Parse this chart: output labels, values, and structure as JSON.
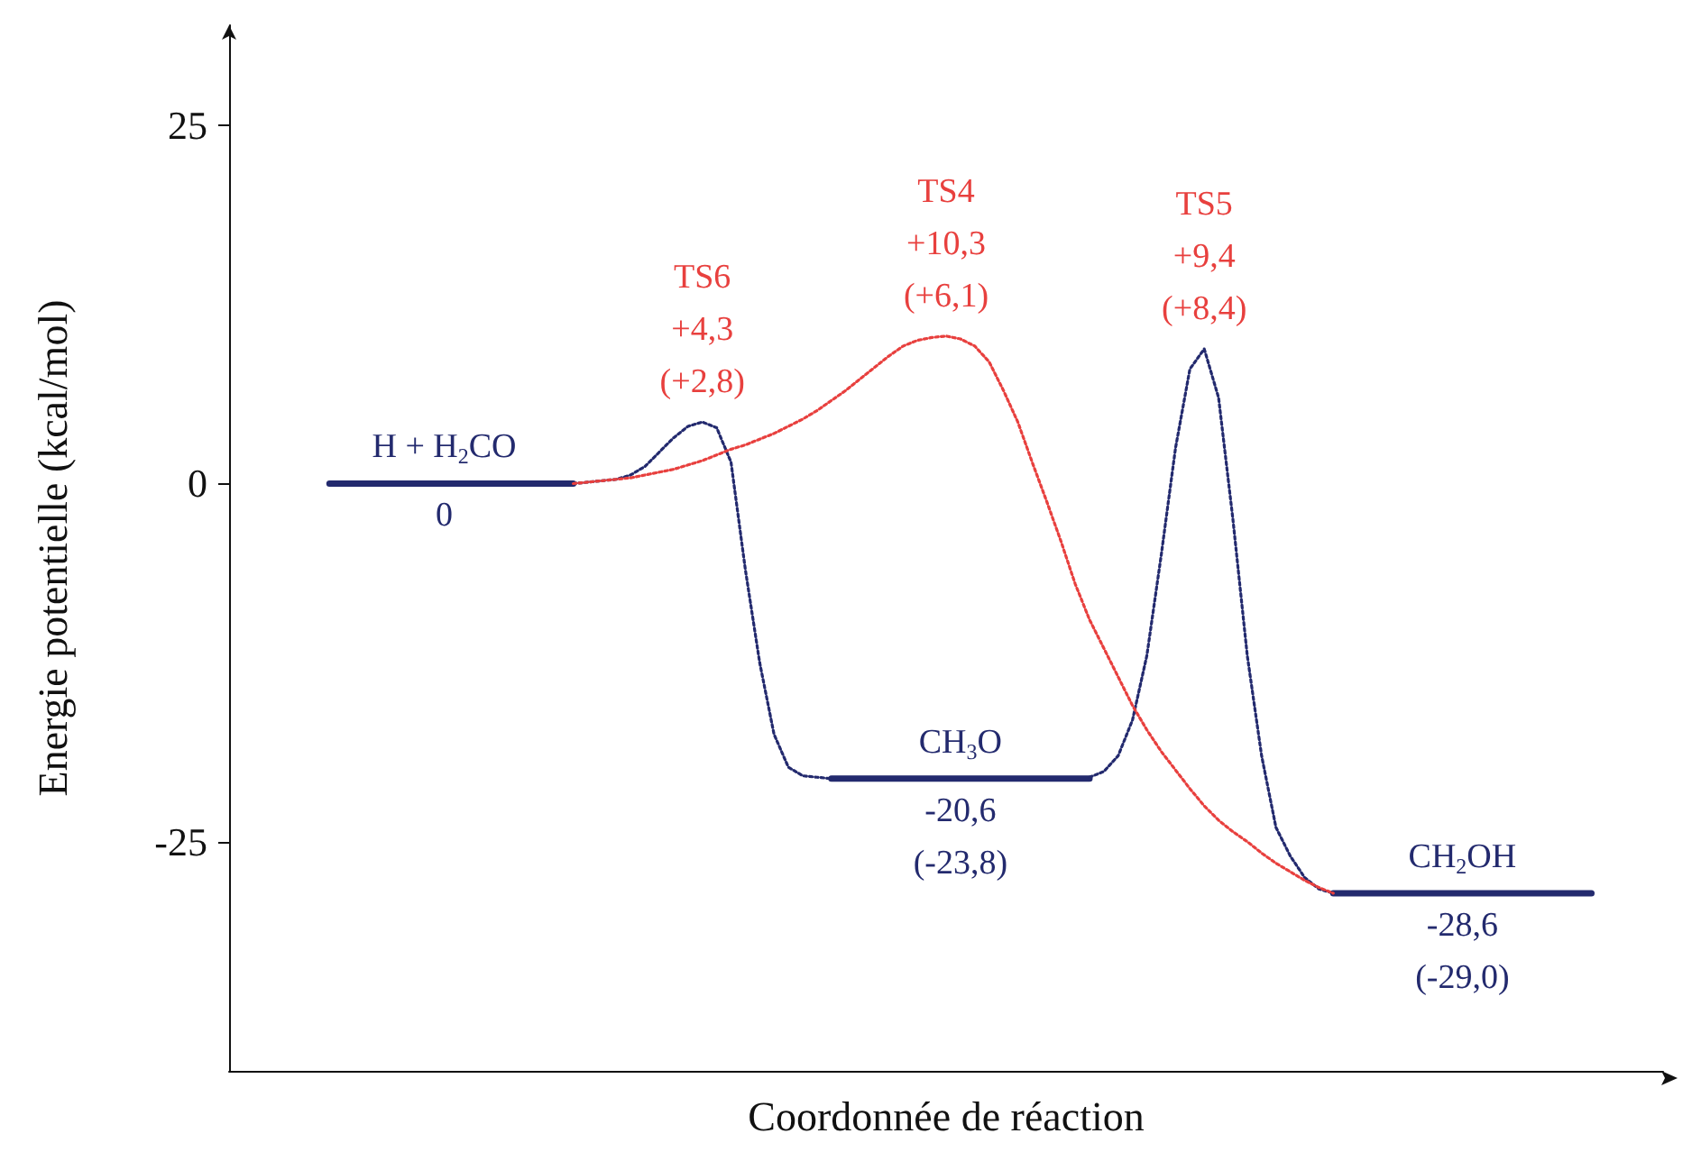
{
  "chart_data": {
    "type": "line",
    "xlabel": "Coordonnée de réaction",
    "ylabel": "Energie potentielle (kcal/mol)",
    "categories": [
      null,
      null,
      null,
      null,
      null,
      null,
      null,
      null,
      null,
      null,
      null,
      null,
      null,
      null,
      null,
      null,
      null,
      null,
      null,
      null,
      null,
      null,
      null,
      null,
      null,
      null,
      null,
      null,
      null,
      null,
      null,
      null,
      null,
      null,
      null,
      null,
      null,
      null,
      null,
      null,
      null,
      null,
      null,
      null,
      null,
      null,
      null,
      null,
      null,
      null,
      null,
      null,
      null,
      null,
      null,
      null,
      null,
      null,
      null,
      null,
      null,
      null,
      null,
      null,
      null,
      null,
      null,
      null,
      null,
      null,
      null,
      null,
      null,
      null,
      null,
      null,
      null,
      null,
      null,
      null,
      null,
      null,
      null,
      null,
      null,
      null,
      null,
      null,
      null,
      null,
      null,
      null,
      null,
      null,
      null,
      null,
      null,
      null,
      null,
      null,
      null
    ],
    "ylim": [
      -41,
      32
    ],
    "yticks": [
      -25,
      0,
      25
    ],
    "tick_labels": "y",
    "grid": false,
    "series": [
      {
        "color": "#232a6e",
        "line_style": "solid",
        "values": [
          null,
          null,
          null,
          null,
          null,
          null,
          null,
          0,
          0,
          0,
          0,
          0,
          0,
          0,
          0,
          0,
          0,
          0,
          0,
          0,
          0,
          0,
          0,
          0,
          0,
          null,
          null,
          null,
          null,
          null,
          null,
          null,
          null,
          null,
          null,
          null,
          null,
          null,
          null,
          null,
          null,
          null,
          null,
          null,
          null,
          null,
          null,
          null,
          null,
          null,
          null,
          null,
          null,
          null,
          null,
          null,
          null,
          null,
          null,
          null,
          null,
          null,
          null,
          null,
          null,
          null,
          null,
          null,
          null,
          null,
          null,
          null,
          null,
          null,
          null,
          null,
          null,
          null,
          null,
          null,
          null,
          null,
          null,
          null,
          null,
          null,
          null,
          null,
          null,
          null,
          null,
          null,
          null,
          null,
          null,
          null,
          null,
          null,
          null,
          null,
          null
        ],
        "value_labels": [
          null,
          null,
          null,
          null,
          null,
          null,
          null,
          null,
          null,
          null,
          null,
          null,
          null,
          null,
          null,
          "H + H$_{2}$CO\n0",
          null,
          null,
          null,
          null,
          null,
          null,
          null,
          null,
          null,
          null,
          null,
          null,
          null,
          null,
          null,
          null,
          null,
          null,
          null,
          null,
          null,
          null,
          null,
          null,
          null,
          null,
          null,
          null,
          null,
          null,
          null,
          null,
          null,
          null,
          null,
          null,
          null,
          null,
          null,
          null,
          null,
          null,
          null,
          null,
          null,
          null,
          null,
          null,
          null,
          null,
          null,
          null,
          null,
          null,
          null,
          null,
          null,
          null,
          null,
          null,
          null,
          null,
          null,
          null,
          null,
          null,
          null,
          null,
          null,
          null,
          null,
          null,
          null,
          null,
          null,
          null,
          null,
          null,
          null,
          null,
          null,
          null,
          null,
          null,
          null
        ]
      },
      {
        "color": "#232a6e",
        "line_style": "solid",
        "values": [
          null,
          null,
          null,
          null,
          null,
          null,
          null,
          null,
          null,
          null,
          null,
          null,
          null,
          null,
          null,
          null,
          null,
          null,
          null,
          null,
          null,
          null,
          null,
          null,
          null,
          null,
          null,
          null,
          null,
          null,
          null,
          null,
          null,
          null,
          null,
          null,
          null,
          null,
          null,
          null,
          null,
          null,
          -20.6,
          -20.6,
          -20.6,
          -20.6,
          -20.6,
          -20.6,
          -20.6,
          -20.6,
          -20.6,
          -20.6,
          -20.6,
          -20.6,
          -20.6,
          -20.6,
          -20.6,
          -20.6,
          -20.6,
          -20.6,
          -20.6,
          null,
          null,
          null,
          null,
          null,
          null,
          null,
          null,
          null,
          null,
          null,
          null,
          null,
          null,
          null,
          null,
          null,
          null,
          null,
          null,
          null,
          null,
          null,
          null,
          null,
          null,
          null,
          null,
          null,
          null,
          null,
          null,
          null,
          null,
          null,
          null,
          null,
          null,
          null,
          null
        ],
        "value_labels": [
          null,
          null,
          null,
          null,
          null,
          null,
          null,
          null,
          null,
          null,
          null,
          null,
          null,
          null,
          null,
          null,
          null,
          null,
          null,
          null,
          null,
          null,
          null,
          null,
          null,
          null,
          null,
          null,
          null,
          null,
          null,
          null,
          null,
          null,
          null,
          null,
          null,
          null,
          null,
          null,
          null,
          null,
          null,
          null,
          null,
          null,
          null,
          null,
          null,
          null,
          null,
          "CH$_{3}$O\n-20,6\n(-23,8)",
          null,
          null,
          null,
          null,
          null,
          null,
          null,
          null,
          null,
          null,
          null,
          null,
          null,
          null,
          null,
          null,
          null,
          null,
          null,
          null,
          null,
          null,
          null,
          null,
          null,
          null,
          null,
          null,
          null,
          null,
          null,
          null,
          null,
          null,
          null,
          null,
          null,
          null,
          null,
          null,
          null,
          null,
          null,
          null,
          null,
          null,
          null,
          null,
          null
        ]
      },
      {
        "color": "#232a6e",
        "line_style": "solid",
        "values": [
          null,
          null,
          null,
          null,
          null,
          null,
          null,
          null,
          null,
          null,
          null,
          null,
          null,
          null,
          null,
          null,
          null,
          null,
          null,
          null,
          null,
          null,
          null,
          null,
          null,
          null,
          null,
          null,
          null,
          null,
          null,
          null,
          null,
          null,
          null,
          null,
          null,
          null,
          null,
          null,
          null,
          null,
          null,
          null,
          null,
          null,
          null,
          null,
          null,
          null,
          null,
          null,
          null,
          null,
          null,
          null,
          null,
          null,
          null,
          null,
          null,
          null,
          null,
          null,
          null,
          null,
          null,
          null,
          null,
          null,
          null,
          null,
          null,
          null,
          null,
          null,
          null,
          -28.6,
          -28.6,
          -28.6,
          -28.6,
          -28.6,
          -28.6,
          -28.6,
          -28.6,
          -28.6,
          -28.6,
          -28.6,
          -28.6,
          -28.6,
          -28.6,
          -28.6,
          -28.6,
          -28.6,
          -28.6,
          -28.6,
          null,
          null,
          null,
          null,
          null
        ],
        "value_labels": [
          null,
          null,
          null,
          null,
          null,
          null,
          null,
          null,
          null,
          null,
          null,
          null,
          null,
          null,
          null,
          null,
          null,
          null,
          null,
          null,
          null,
          null,
          null,
          null,
          null,
          null,
          null,
          null,
          null,
          null,
          null,
          null,
          null,
          null,
          null,
          null,
          null,
          null,
          null,
          null,
          null,
          null,
          null,
          null,
          null,
          null,
          null,
          null,
          null,
          null,
          null,
          null,
          null,
          null,
          null,
          null,
          null,
          null,
          null,
          null,
          null,
          null,
          null,
          null,
          null,
          null,
          null,
          null,
          null,
          null,
          null,
          null,
          null,
          null,
          null,
          null,
          null,
          null,
          null,
          null,
          null,
          null,
          null,
          null,
          null,
          null,
          "CH$_{2}$OH\n-28,6\n(-29,0)",
          null,
          null,
          null,
          null,
          null,
          null,
          null,
          null,
          null,
          null,
          null,
          null,
          null,
          null
        ]
      },
      {
        "color": "#232a6e",
        "line_style": "dotted",
        "values": [
          null,
          null,
          null,
          null,
          null,
          null,
          null,
          null,
          null,
          null,
          null,
          null,
          null,
          null,
          null,
          null,
          null,
          null,
          null,
          null,
          null,
          null,
          null,
          null,
          0,
          0.1,
          0.2,
          0.3,
          0.6,
          1.2,
          2.2,
          3.2,
          4.0,
          4.3,
          3.9,
          1.5,
          -6,
          -12.5,
          -17.5,
          -19.8,
          -20.4,
          -20.5,
          -20.6,
          null,
          null,
          null,
          null,
          null,
          null,
          null,
          null,
          null,
          null,
          null,
          null,
          null,
          null,
          null,
          null,
          null,
          null,
          null,
          null,
          null,
          null,
          null,
          null,
          null,
          null,
          null,
          null,
          null,
          null,
          null,
          null,
          null,
          null,
          null,
          null,
          null,
          null,
          null,
          null,
          null,
          null,
          null,
          null,
          null,
          null,
          null,
          null,
          null,
          null,
          null,
          null,
          null,
          null,
          null,
          null,
          null,
          null
        ],
        "value_labels": [
          null,
          null,
          null,
          null,
          null,
          null,
          null,
          null,
          null,
          null,
          null,
          null,
          null,
          null,
          null,
          null,
          null,
          null,
          null,
          null,
          null,
          null,
          null,
          null,
          null,
          null,
          null,
          null,
          null,
          null,
          null,
          null,
          null,
          "TS6\n+4,3\n(+2,8)",
          null,
          null,
          null,
          null,
          null,
          null,
          null,
          null,
          null,
          null,
          null,
          null,
          null,
          null,
          null,
          null,
          null,
          null,
          null,
          null,
          null,
          null,
          null,
          null,
          null,
          null,
          null,
          null,
          null,
          null,
          null,
          null,
          null,
          null,
          null,
          null,
          null,
          null,
          null,
          null,
          null,
          null,
          null,
          null,
          null,
          null,
          null,
          null,
          null,
          null,
          null,
          null,
          null,
          null,
          null,
          null,
          null,
          null,
          null,
          null,
          null,
          null,
          null,
          null,
          null,
          null,
          null
        ]
      },
      {
        "color": "#232a6e",
        "line_style": "dotted",
        "values": [
          null,
          null,
          null,
          null,
          null,
          null,
          null,
          null,
          null,
          null,
          null,
          null,
          null,
          null,
          null,
          null,
          null,
          null,
          null,
          null,
          null,
          null,
          null,
          null,
          null,
          null,
          null,
          null,
          null,
          null,
          null,
          null,
          null,
          null,
          null,
          null,
          null,
          null,
          null,
          null,
          null,
          null,
          null,
          null,
          null,
          null,
          null,
          null,
          null,
          null,
          null,
          null,
          null,
          null,
          null,
          null,
          null,
          null,
          null,
          null,
          -20.5,
          -20.1,
          -19,
          -16.5,
          -12,
          -5,
          2.5,
          8,
          9.4,
          6,
          -2.5,
          -12,
          -19,
          -24,
          -26,
          -27.5,
          -28.3,
          -28.6,
          null,
          null,
          null,
          null,
          null,
          null,
          null,
          null,
          null,
          null,
          null,
          null,
          null,
          null,
          null,
          null,
          null,
          null,
          null,
          null,
          null,
          null,
          null
        ],
        "value_labels": [
          null,
          null,
          null,
          null,
          null,
          null,
          null,
          null,
          null,
          null,
          null,
          null,
          null,
          null,
          null,
          null,
          null,
          null,
          null,
          null,
          null,
          null,
          null,
          null,
          null,
          null,
          null,
          null,
          null,
          null,
          null,
          null,
          null,
          null,
          null,
          null,
          null,
          null,
          null,
          null,
          null,
          null,
          null,
          null,
          null,
          null,
          null,
          null,
          null,
          null,
          null,
          null,
          null,
          null,
          null,
          null,
          null,
          null,
          null,
          null,
          null,
          null,
          null,
          null,
          null,
          null,
          null,
          null,
          "TS5\n+9,4\n(+8,4)",
          null,
          null,
          null,
          null,
          null,
          null,
          null,
          null,
          null,
          null,
          null,
          null,
          null,
          null,
          null,
          null,
          null,
          null,
          null,
          null,
          null,
          null,
          null,
          null,
          null,
          null,
          null,
          null,
          null,
          null,
          null,
          null
        ]
      },
      {
        "color": "#e8403e",
        "line_style": "dotted",
        "values": [
          null,
          null,
          null,
          null,
          null,
          null,
          null,
          null,
          null,
          null,
          null,
          null,
          null,
          null,
          null,
          null,
          null,
          null,
          null,
          null,
          null,
          null,
          null,
          null,
          0,
          0.1,
          0.2,
          0.3,
          0.4,
          0.6,
          0.8,
          1.0,
          1.3,
          1.6,
          2.0,
          2.4,
          2.7,
          3.1,
          3.5,
          4.0,
          4.5,
          5.1,
          5.8,
          6.5,
          7.3,
          8.1,
          8.9,
          9.6,
          10.0,
          10.2,
          10.3,
          10.1,
          9.6,
          8.5,
          6.5,
          4.3,
          1.5,
          -1.2,
          -4,
          -7,
          -9.5,
          -11.5,
          -13.5,
          -15.5,
          -17.2,
          -18.7,
          -20,
          -21.3,
          -22.5,
          -23.5,
          -24.3,
          -25,
          -25.8,
          -26.5,
          -27.1,
          -27.7,
          -28.2,
          -28.6,
          null,
          null,
          null,
          null,
          null,
          null,
          null,
          null,
          null,
          null,
          null,
          null,
          null,
          null,
          null,
          null,
          null,
          null,
          null,
          null,
          null,
          null,
          null
        ],
        "value_labels": [
          null,
          null,
          null,
          null,
          null,
          null,
          null,
          null,
          null,
          null,
          null,
          null,
          null,
          null,
          null,
          null,
          null,
          null,
          null,
          null,
          null,
          null,
          null,
          null,
          null,
          null,
          null,
          null,
          null,
          null,
          null,
          null,
          null,
          null,
          null,
          null,
          null,
          null,
          null,
          null,
          null,
          null,
          null,
          null,
          null,
          null,
          null,
          null,
          null,
          null,
          "TS4\n+10,3\n(+6,1)",
          null,
          null,
          null,
          null,
          null,
          null,
          null,
          null,
          null,
          null,
          null,
          null,
          null,
          null,
          null,
          null,
          null,
          null,
          null,
          null,
          null,
          null,
          null,
          null,
          null,
          null,
          null,
          null,
          null,
          null,
          null,
          null,
          null,
          null,
          null,
          null,
          null,
          null,
          null,
          null,
          null,
          null,
          null,
          null,
          null,
          null,
          null,
          null,
          null,
          null
        ]
      }
    ]
  }
}
